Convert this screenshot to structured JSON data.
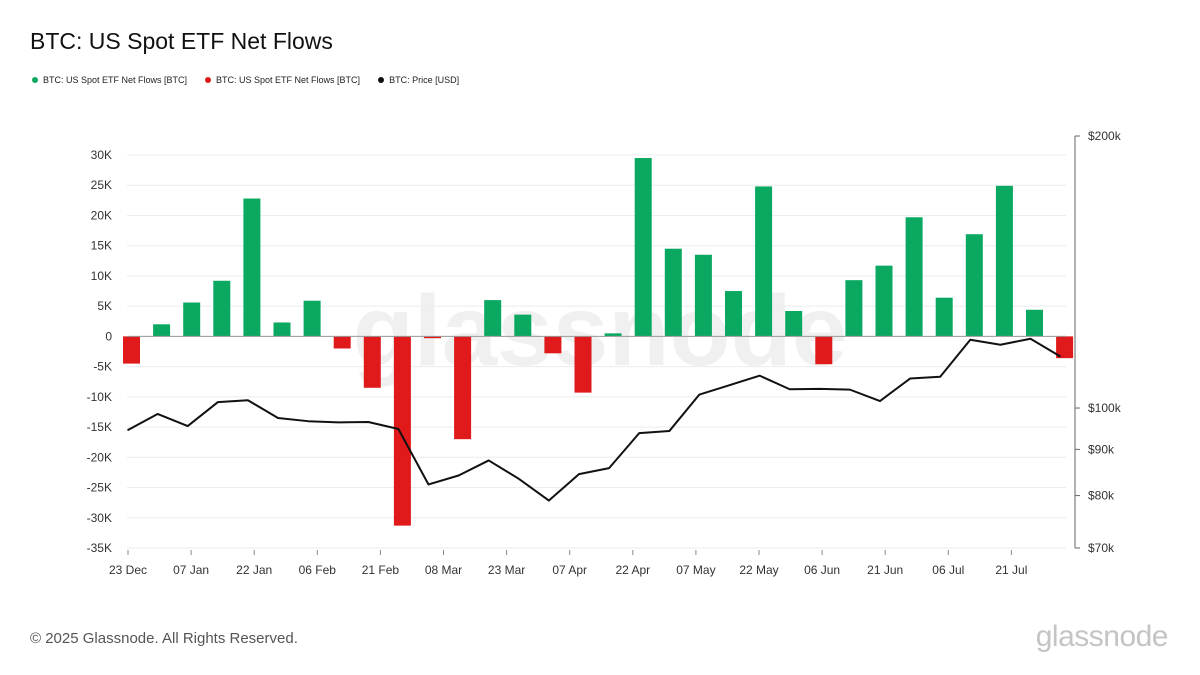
{
  "title": "BTC: US Spot ETF Net Flows",
  "legend": [
    {
      "label": "BTC: US Spot ETF Net Flows [BTC]",
      "color": "#0aa861"
    },
    {
      "label": "BTC: US Spot ETF Net Flows [BTC]",
      "color": "#e0191b"
    },
    {
      "label": "BTC: Price [USD]",
      "color": "#111111"
    }
  ],
  "footer": "© 2025 Glassnode. All Rights Reserved.",
  "brand": "glassnode",
  "watermark": "glassnode",
  "chart_data": {
    "type": "bar",
    "title": "BTC: US Spot ETF Net Flows",
    "positive_color": "#0aa861",
    "negative_color": "#e0191b",
    "line_color": "#111111",
    "x_ticks": [
      "23 Dec",
      "07 Jan",
      "22 Jan",
      "06 Feb",
      "21 Feb",
      "08 Mar",
      "23 Mar",
      "07 Apr",
      "22 Apr",
      "07 May",
      "22 May",
      "06 Jun",
      "21 Jun",
      "06 Jul",
      "21 Jul"
    ],
    "y_left_ticks": [
      "30K",
      "25K",
      "20K",
      "15K",
      "10K",
      "5K",
      "0",
      "-5K",
      "-10K",
      "-15K",
      "-20K",
      "-25K",
      "-30K",
      "-35K"
    ],
    "y_left_range": [
      -35000,
      30000
    ],
    "y_right_ticks": [
      "$200k",
      "$100k",
      "$90k",
      "$80k",
      "$70k"
    ],
    "y_right_range": [
      70000,
      200000
    ],
    "y_right_scale": "log",
    "grid": true,
    "series": [
      {
        "name": "BTC: US Spot ETF Net Flows [BTC]",
        "values": [
          -4500,
          2000,
          5600,
          9200,
          22800,
          2300,
          5900,
          -2000,
          -8500,
          -31300,
          -300,
          -17000,
          6000,
          3600,
          -2800,
          -9300,
          500,
          29500,
          14500,
          13500,
          7500,
          24800,
          4200,
          -4600,
          9300,
          11700,
          19700,
          6400,
          16900,
          24900,
          4400,
          -3600
        ]
      },
      {
        "name": "BTC: Price [USD]",
        "values": [
          94500,
          98500,
          95500,
          101500,
          102000,
          97500,
          96700,
          96400,
          96500,
          94800,
          82300,
          84200,
          87500,
          83500,
          79000,
          84500,
          85800,
          93800,
          94300,
          103500,
          106000,
          108600,
          104900,
          105000,
          104800,
          101800,
          107800,
          108300,
          119000,
          117500,
          119300,
          114000
        ]
      }
    ]
  }
}
